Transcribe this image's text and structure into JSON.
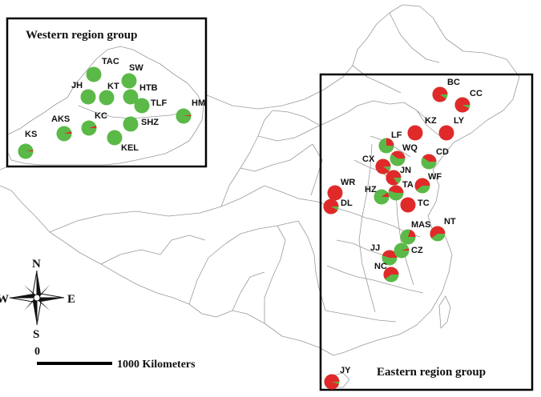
{
  "colors": {
    "red": "#e02a2a",
    "green": "#5bb947",
    "boundary": "#9a9a9a",
    "frame": "#000000"
  },
  "western_group": {
    "title": "Western region group",
    "sites": [
      {
        "code": "TAC",
        "red_fraction": 0.0
      },
      {
        "code": "SW",
        "red_fraction": 0.0
      },
      {
        "code": "JH",
        "red_fraction": 0.0
      },
      {
        "code": "KT",
        "red_fraction": 0.0
      },
      {
        "code": "HTB",
        "red_fraction": 0.0
      },
      {
        "code": "TLF",
        "red_fraction": 0.0
      },
      {
        "code": "HM",
        "red_fraction": 0.03
      },
      {
        "code": "AKS",
        "red_fraction": 0.05
      },
      {
        "code": "KC",
        "red_fraction": 0.05
      },
      {
        "code": "SHZ",
        "red_fraction": 0.0
      },
      {
        "code": "KEL",
        "red_fraction": 0.0
      },
      {
        "code": "KS",
        "red_fraction": 0.03
      }
    ]
  },
  "eastern_group": {
    "title": "Eastern region group",
    "sites": [
      {
        "code": "BC",
        "red_fraction": 0.9
      },
      {
        "code": "CC",
        "red_fraction": 0.92
      },
      {
        "code": "KZ",
        "red_fraction": 1.0
      },
      {
        "code": "LY",
        "red_fraction": 1.0
      },
      {
        "code": "LF",
        "red_fraction": 0.25
      },
      {
        "code": "WQ",
        "red_fraction": 0.4
      },
      {
        "code": "CD",
        "red_fraction": 0.4
      },
      {
        "code": "CX",
        "red_fraction": 0.9
      },
      {
        "code": "JN",
        "red_fraction": 0.85
      },
      {
        "code": "WF",
        "red_fraction": 0.6
      },
      {
        "code": "WR",
        "red_fraction": 1.0
      },
      {
        "code": "HZ",
        "red_fraction": 0.1
      },
      {
        "code": "TA",
        "red_fraction": 0.45
      },
      {
        "code": "DL",
        "red_fraction": 0.92
      },
      {
        "code": "TC",
        "red_fraction": 1.0
      },
      {
        "code": "MAS",
        "red_fraction": 0.2
      },
      {
        "code": "NT",
        "red_fraction": 0.6
      },
      {
        "code": "JJ",
        "red_fraction": 0.45
      },
      {
        "code": "CZ",
        "red_fraction": 0.05
      },
      {
        "code": "NC",
        "red_fraction": 0.6
      },
      {
        "code": "JY",
        "red_fraction": 0.95
      }
    ]
  },
  "compass": {
    "n": "N",
    "s": "S",
    "e": "E",
    "w": "W"
  },
  "scale_bar": {
    "zero": "0",
    "label": "1000 Kilometers"
  }
}
